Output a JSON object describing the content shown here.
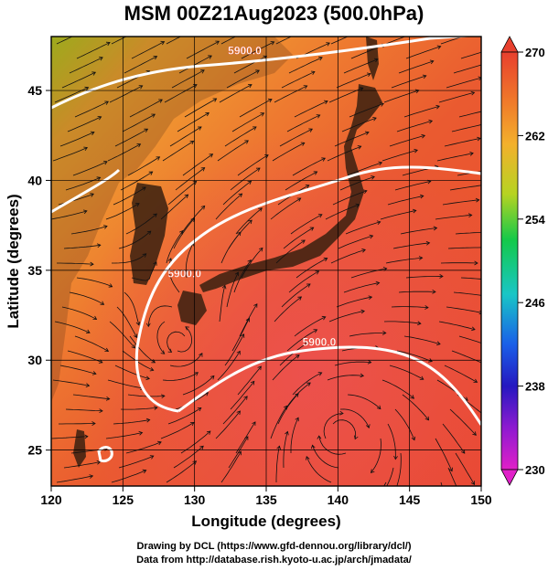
{
  "title": "MSM 00Z21Aug2023 (500.0hPa)",
  "x_axis": {
    "label": "Longitude (degrees)",
    "range": [
      120,
      150
    ],
    "ticks": [
      120,
      125,
      130,
      135,
      140,
      145,
      150
    ]
  },
  "y_axis": {
    "label": "Latitude  (degrees)",
    "range": [
      23,
      48
    ],
    "ticks": [
      25,
      30,
      35,
      40,
      45
    ]
  },
  "colorbar": {
    "range": [
      230,
      270
    ],
    "tick_labels": [
      "270",
      "262",
      "254",
      "246",
      "238",
      "230"
    ],
    "colors": [
      "#e8402e",
      "#f3a52c",
      "#b6d322",
      "#14c94a",
      "#19c6c6",
      "#1a5fe8",
      "#2518c0",
      "#8e1ad0",
      "#e020c8"
    ]
  },
  "contours": [
    {
      "label": "5900.0",
      "lon": 133.5,
      "lat": 47.0
    },
    {
      "label": "5900.0",
      "lon": 129.3,
      "lat": 34.6
    },
    {
      "label": "5900.0",
      "lon": 138.7,
      "lat": 30.8
    }
  ],
  "footer": {
    "line1": "Drawing by DCL (https://www.gfd-dennou.org/library/dcl/)",
    "line2": "Data from http://database.rish.kyoto-u.ac.jp/arch/jmadata/"
  }
}
